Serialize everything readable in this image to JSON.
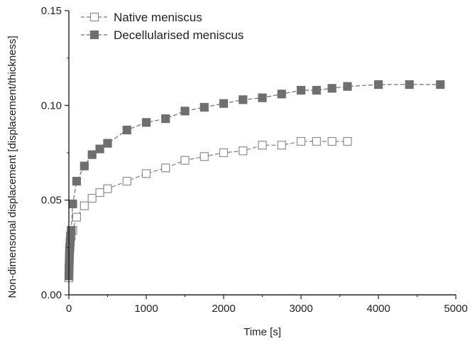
{
  "chart_data": {
    "type": "line",
    "xlabel": "Time [s]",
    "ylabel": "Non-dimensonal displacement [displacement/thickness]",
    "xlim": [
      0,
      5000
    ],
    "ylim": [
      0,
      0.15
    ],
    "x_ticks": [
      "0",
      "1000",
      "2000",
      "3000",
      "4000",
      "5000"
    ],
    "y_ticks": [
      "0.00",
      "0.05",
      "0.10",
      "0.15"
    ],
    "grid": false,
    "legend_position": "top-left",
    "series": [
      {
        "name": "Native meniscus",
        "marker": "open-square",
        "color": "#7f7f7f",
        "points": [
          [
            0,
            0.009
          ],
          [
            2,
            0.012
          ],
          [
            4,
            0.015
          ],
          [
            6,
            0.018
          ],
          [
            8,
            0.02
          ],
          [
            10,
            0.022
          ],
          [
            15,
            0.025
          ],
          [
            20,
            0.028
          ],
          [
            30,
            0.031
          ],
          [
            50,
            0.034
          ],
          [
            100,
            0.041
          ],
          [
            200,
            0.047
          ],
          [
            300,
            0.051
          ],
          [
            400,
            0.054
          ],
          [
            500,
            0.056
          ],
          [
            750,
            0.06
          ],
          [
            1000,
            0.064
          ],
          [
            1250,
            0.067
          ],
          [
            1500,
            0.071
          ],
          [
            1750,
            0.073
          ],
          [
            2000,
            0.075
          ],
          [
            2250,
            0.076
          ],
          [
            2500,
            0.079
          ],
          [
            2750,
            0.079
          ],
          [
            3000,
            0.081
          ],
          [
            3200,
            0.081
          ],
          [
            3400,
            0.081
          ],
          [
            3600,
            0.081
          ]
        ]
      },
      {
        "name": "Decellularised meniscus",
        "marker": "filled-square",
        "color": "#6f6f6f",
        "points": [
          [
            0,
            0.01
          ],
          [
            2,
            0.014
          ],
          [
            4,
            0.017
          ],
          [
            6,
            0.02
          ],
          [
            8,
            0.023
          ],
          [
            10,
            0.025
          ],
          [
            15,
            0.028
          ],
          [
            20,
            0.031
          ],
          [
            30,
            0.034
          ],
          [
            50,
            0.048
          ],
          [
            100,
            0.06
          ],
          [
            200,
            0.068
          ],
          [
            300,
            0.074
          ],
          [
            400,
            0.077
          ],
          [
            500,
            0.08
          ],
          [
            750,
            0.087
          ],
          [
            1000,
            0.091
          ],
          [
            1250,
            0.093
          ],
          [
            1500,
            0.097
          ],
          [
            1750,
            0.099
          ],
          [
            2000,
            0.101
          ],
          [
            2250,
            0.103
          ],
          [
            2500,
            0.104
          ],
          [
            2750,
            0.106
          ],
          [
            3000,
            0.108
          ],
          [
            3200,
            0.108
          ],
          [
            3400,
            0.109
          ],
          [
            3600,
            0.11
          ],
          [
            4000,
            0.111
          ],
          [
            4400,
            0.111
          ],
          [
            4800,
            0.111
          ]
        ]
      }
    ]
  }
}
